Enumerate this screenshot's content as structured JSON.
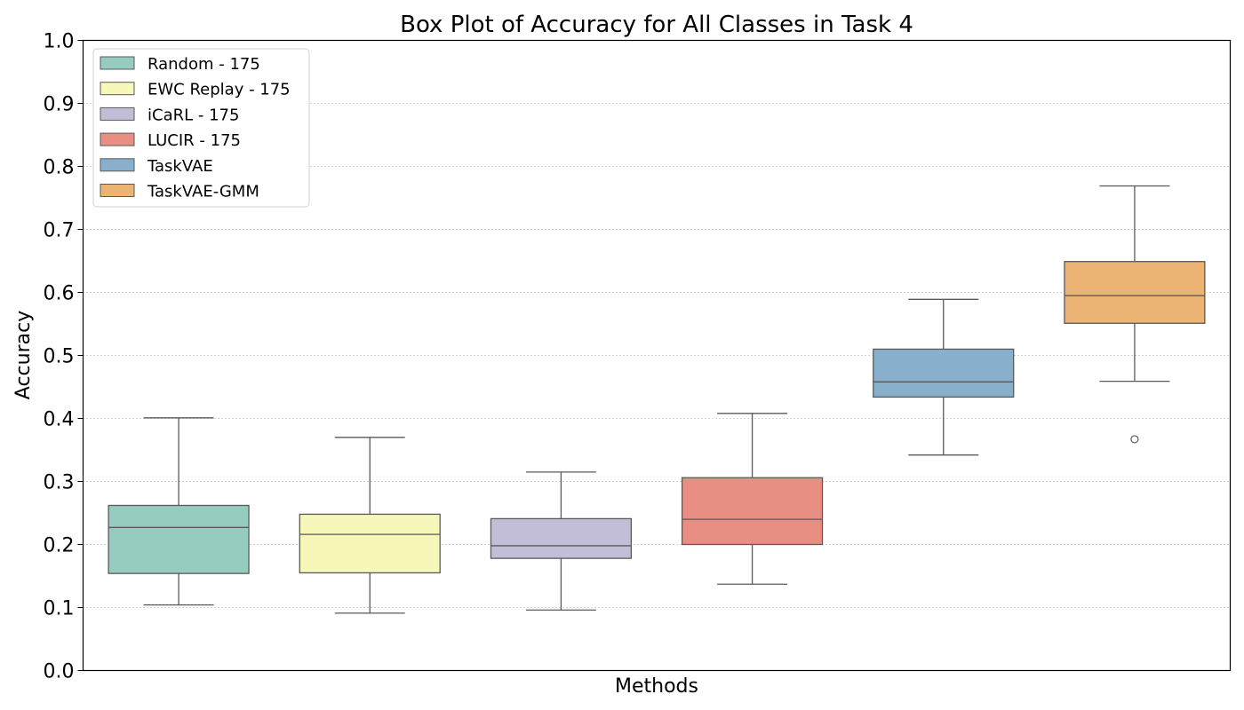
{
  "chart_data": {
    "type": "box",
    "title": "Box Plot of Accuracy for All Classes in Task 4",
    "xlabel": "Methods",
    "ylabel": "Accuracy",
    "ylim": [
      0.0,
      1.0
    ],
    "yticks": [
      "0.0",
      "0.1",
      "0.2",
      "0.3",
      "0.4",
      "0.5",
      "0.6",
      "0.7",
      "0.8",
      "0.9",
      "1.0"
    ],
    "grid": "horizontal dotted",
    "legend_position": "upper-left",
    "series": [
      {
        "name": "Random - 175",
        "color": "#96cbc0",
        "whisker_low": 0.104,
        "q1": 0.154,
        "median": 0.227,
        "q3": 0.262,
        "whisker_high": 0.401,
        "outliers": []
      },
      {
        "name": "EWC Replay - 175",
        "color": "#f6f7b9",
        "whisker_low": 0.091,
        "q1": 0.155,
        "median": 0.216,
        "q3": 0.248,
        "whisker_high": 0.37,
        "outliers": []
      },
      {
        "name": "iCaRL - 175",
        "color": "#c2bed7",
        "whisker_low": 0.096,
        "q1": 0.178,
        "median": 0.198,
        "q3": 0.241,
        "whisker_high": 0.315,
        "outliers": []
      },
      {
        "name": "LUCIR - 175",
        "color": "#e98e82",
        "whisker_low": 0.137,
        "q1": 0.2,
        "median": 0.24,
        "q3": 0.306,
        "whisker_high": 0.408,
        "outliers": []
      },
      {
        "name": "TaskVAE",
        "color": "#88afcb",
        "whisker_low": 0.342,
        "q1": 0.434,
        "median": 0.458,
        "q3": 0.51,
        "whisker_high": 0.589,
        "outliers": []
      },
      {
        "name": "TaskVAE-GMM",
        "color": "#ebb374",
        "whisker_low": 0.459,
        "q1": 0.551,
        "median": 0.595,
        "q3": 0.649,
        "whisker_high": 0.769,
        "outliers": [
          0.367
        ]
      }
    ]
  }
}
